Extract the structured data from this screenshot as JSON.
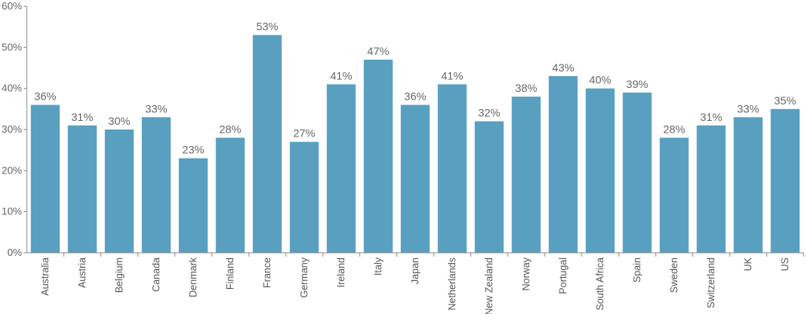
{
  "chart_data": {
    "type": "bar",
    "title": "",
    "xlabel": "",
    "ylabel": "",
    "categories": [
      "Australia",
      "Austria",
      "Belgium",
      "Canada",
      "Denmark",
      "Finland",
      "France",
      "Germany",
      "Ireland",
      "Italy",
      "Japan",
      "Netherlands",
      "New Zealand",
      "Norway",
      "Portugal",
      "South Africa",
      "Spain",
      "Sweden",
      "Switzerland",
      "UK",
      "US"
    ],
    "values": [
      36,
      31,
      30,
      33,
      23,
      28,
      53,
      27,
      41,
      47,
      36,
      41,
      32,
      38,
      43,
      40,
      39,
      28,
      31,
      33,
      35
    ],
    "data_labels": [
      "36%",
      "31%",
      "30%",
      "33%",
      "23%",
      "28%",
      "53%",
      "27%",
      "41%",
      "47%",
      "36%",
      "41%",
      "32%",
      "38%",
      "43%",
      "40%",
      "39%",
      "28%",
      "31%",
      "33%",
      "35%"
    ],
    "y_ticks": [
      0,
      10,
      20,
      30,
      40,
      50,
      60
    ],
    "y_tick_labels": [
      "0%",
      "10%",
      "20%",
      "30%",
      "40%",
      "50%",
      "60%"
    ],
    "ylim": [
      0,
      60
    ],
    "grid": false,
    "legend": "none",
    "bar_color": "#589fc0",
    "axis_color": "#888888"
  }
}
